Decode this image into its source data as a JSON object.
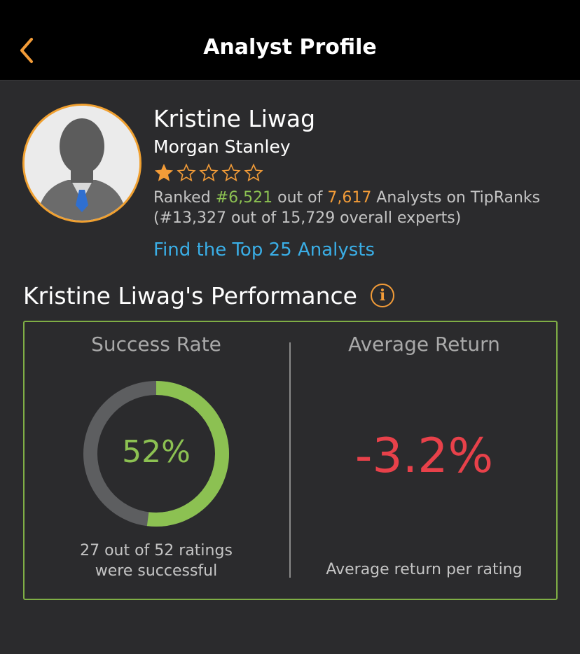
{
  "header": {
    "title": "Analyst Profile",
    "back_icon": "chevron-left-icon"
  },
  "colors": {
    "accent_orange": "#f39c38",
    "accent_green": "#8cc152",
    "link_blue": "#3aaee6",
    "negative_red": "#e8414a",
    "background": "#2b2b2d"
  },
  "profile": {
    "name": "Kristine Liwag",
    "firm": "Morgan Stanley",
    "star_rating": 1,
    "star_max": 5,
    "rank_prefix": "Ranked ",
    "rank": "#6,521",
    "rank_middle": " out of ",
    "rank_total": "7,617",
    "rank_suffix": " Analysts on TipRanks",
    "overall_rank": "(#13,327 out of 15,729 overall experts)",
    "top25_link": "Find the Top 25 Analysts"
  },
  "performance": {
    "title": "Kristine Liwag's Performance",
    "success_rate": {
      "label": "Success Rate",
      "value": 0.52,
      "value_text": "52%",
      "caption_line1": "27 out of 52 ratings",
      "caption_line2": "were successful"
    },
    "average_return": {
      "label": "Average Return",
      "value_text": "-3.2%",
      "caption": "Average return per rating"
    }
  }
}
